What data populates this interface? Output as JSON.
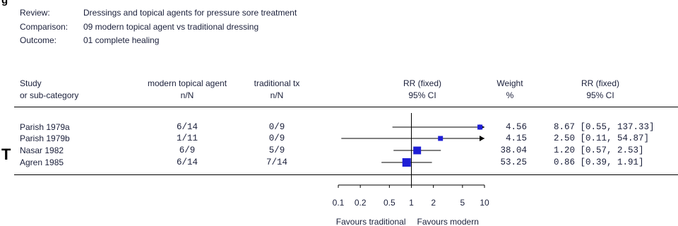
{
  "figure_mark": "g",
  "stray_mark": "T",
  "meta": [
    {
      "label": "Review:",
      "value": "Dressings and topical agents for pressure sore treatment"
    },
    {
      "label": "Comparison:",
      "value": "09 modern topical agent vs traditional dressing"
    },
    {
      "label": "Outcome:",
      "value": "01 complete healing"
    }
  ],
  "headers": {
    "study": [
      "Study",
      "or sub-category"
    ],
    "group1": [
      "modern topical agent",
      "n/N"
    ],
    "group2": [
      "traditional tx",
      "n/N"
    ],
    "plot": [
      "RR (fixed)",
      "95% CI"
    ],
    "weight": [
      "Weight",
      "%"
    ],
    "rr": [
      "RR (fixed)",
      "95% CI"
    ]
  },
  "colors": {
    "marker": "#1f1fd6",
    "line": "#000000",
    "text": "#1a1f3a"
  },
  "chart_data": {
    "type": "forest",
    "xscale": "log",
    "xlim": [
      0.1,
      10
    ],
    "ticks": [
      "0.1",
      "0.2",
      "0.5",
      "1",
      "2",
      "5",
      "10"
    ],
    "xlabel_left": "Favours traditional",
    "xlabel_right": "Favours modern",
    "studies": [
      {
        "name": "Parish 1979a",
        "g1": "6/14",
        "g2": "0/9",
        "weight": "4.56",
        "ci_text": "8.67 [0.55, 137.33]",
        "rr": 8.67,
        "lo": 0.55,
        "hi": 137.33
      },
      {
        "name": "Parish 1979b",
        "g1": "1/11",
        "g2": "0/9",
        "weight": "4.15",
        "ci_text": "2.50 [0.11, 54.87]",
        "rr": 2.5,
        "lo": 0.11,
        "hi": 54.87
      },
      {
        "name": "Nasar 1982",
        "g1": "6/9",
        "g2": "5/9",
        "weight": "38.04",
        "ci_text": "1.20 [0.57, 2.53]",
        "rr": 1.2,
        "lo": 0.57,
        "hi": 2.53
      },
      {
        "name": "Agren 1985",
        "g1": "6/14",
        "g2": "7/14",
        "weight": "53.25",
        "ci_text": "0.86 [0.39, 1.91]",
        "rr": 0.86,
        "lo": 0.39,
        "hi": 1.91
      }
    ]
  }
}
